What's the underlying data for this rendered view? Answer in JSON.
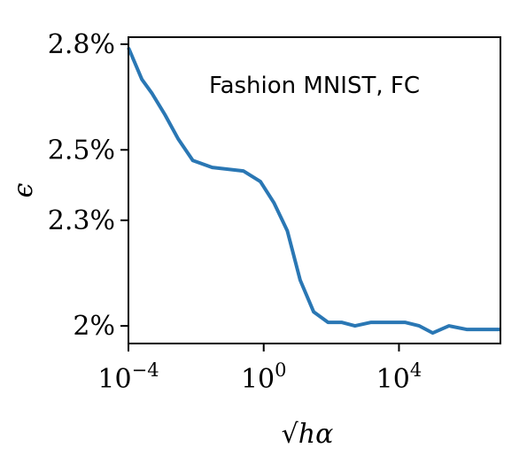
{
  "chart_data": {
    "type": "line",
    "annotation": "Fashion MNIST, FC",
    "xlabel": "√hα",
    "ylabel": "ϵ",
    "x_scale": "log",
    "xlim": [
      0.0001,
      10000000
    ],
    "ylim": [
      1.95,
      2.82
    ],
    "x_ticks": [
      {
        "value": 0.0001,
        "base": "10",
        "exp": "−4"
      },
      {
        "value": 1,
        "base": "10",
        "exp": "0"
      },
      {
        "value": 10000,
        "base": "10",
        "exp": "4"
      }
    ],
    "y_ticks": [
      {
        "value": 2.8,
        "label": "2.8%"
      },
      {
        "value": 2.5,
        "label": "2.5%"
      },
      {
        "value": 2.3,
        "label": "2.3%"
      },
      {
        "value": 2.0,
        "label": "2%"
      }
    ],
    "series": [
      {
        "color": "#2a77b4",
        "x": [
          0.0001,
          0.00025,
          0.0005,
          0.0012,
          0.003,
          0.008,
          0.03,
          0.25,
          0.8,
          2,
          5,
          12,
          30,
          80,
          200,
          500,
          1500,
          5000,
          15000,
          40000,
          100000,
          300000,
          1000000,
          3000000,
          10000000
        ],
        "y": [
          2.79,
          2.7,
          2.66,
          2.6,
          2.53,
          2.47,
          2.45,
          2.44,
          2.41,
          2.35,
          2.27,
          2.13,
          2.04,
          2.01,
          2.01,
          2.0,
          2.01,
          2.01,
          2.01,
          2.0,
          1.98,
          2.0,
          1.99,
          1.99,
          1.99
        ]
      }
    ],
    "grid": false,
    "legend": "none"
  }
}
